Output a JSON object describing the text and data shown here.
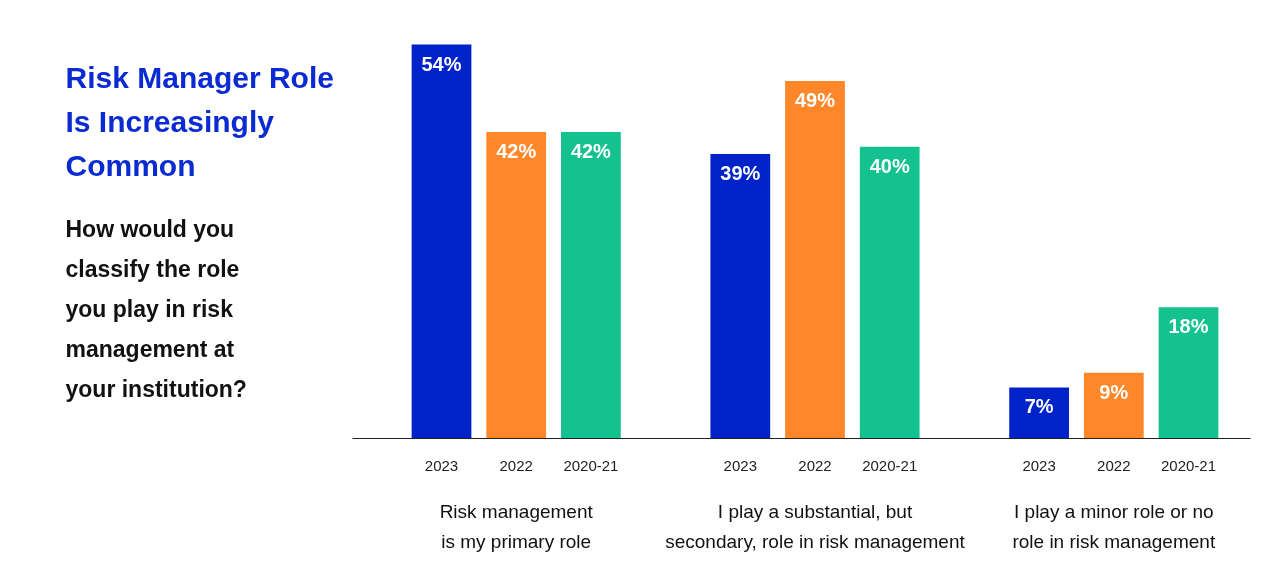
{
  "chart_data": {
    "type": "bar",
    "title": "Risk Manager Role Is Increasingly Common",
    "subtitle": "How would you classify the role you play in risk management at your institution?",
    "categories": [
      "Risk management is my primary role",
      "I play a substantial, but secondary, role in risk management",
      "I play a minor role or no role in risk management"
    ],
    "series": [
      {
        "name": "2023",
        "color": "#0022c9",
        "values": [
          54,
          39,
          7
        ],
        "value_labels": [
          "54%",
          "39%",
          "7%"
        ]
      },
      {
        "name": "2022",
        "color": "#ff8629",
        "values": [
          42,
          49,
          9
        ],
        "value_labels": [
          "42%",
          "49%",
          "9%"
        ]
      },
      {
        "name": "2020-21",
        "color": "#14c28f",
        "values": [
          42,
          40,
          18
        ],
        "value_labels": [
          "42%",
          "40%",
          "18%"
        ]
      }
    ],
    "grid": false,
    "legend": false
  }
}
